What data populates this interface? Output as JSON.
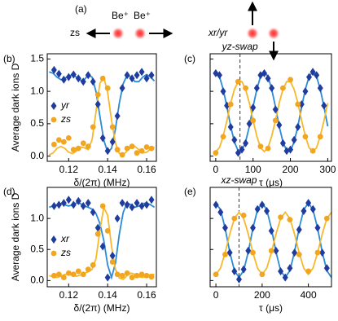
{
  "panel_a": {
    "label": "(a)",
    "left_text": "zs",
    "ion_labels": [
      "Be⁺",
      "Be⁺"
    ],
    "right_text": "xr/yr"
  },
  "chart_data": [
    {
      "type": "line",
      "panel_label": "(b)",
      "xlabel": "δ/(2π) (MHz)",
      "ylabel": "Average dark ions D",
      "xlim": [
        0.109,
        0.165
      ],
      "ylim": [
        -0.08,
        1.58
      ],
      "xticks": [
        0.12,
        0.14,
        0.16
      ],
      "yticks": [
        {
          "value": 0,
          "label": "0.0"
        },
        {
          "value": 0.5,
          "label": "0.5"
        },
        {
          "value": 1,
          "label": "1.0"
        },
        {
          "value": 1.5,
          "label": "1.5"
        }
      ],
      "ytick_labels": true,
      "legend": "left",
      "series": [
        {
          "name": "yr",
          "color": "#1f3c9e",
          "marker": "diamond",
          "x": [
            0.1125,
            0.115,
            0.1175,
            0.12,
            0.1225,
            0.125,
            0.1275,
            0.13,
            0.1325,
            0.135,
            0.1375,
            0.14,
            0.1425,
            0.145,
            0.1475,
            0.15,
            0.1525,
            0.155,
            0.1575,
            0.16,
            0.1625
          ],
          "values": [
            1.33,
            1.27,
            1.18,
            1.22,
            1.26,
            1.2,
            1.15,
            1.25,
            1.15,
            0.8,
            0.28,
            0.08,
            0.22,
            0.62,
            1.05,
            1.25,
            1.2,
            1.25,
            1.3,
            1.2,
            1.25
          ]
        },
        {
          "name": "zs",
          "color": "#f2a51f",
          "marker": "circle",
          "x": [
            0.1125,
            0.115,
            0.1175,
            0.12,
            0.1225,
            0.125,
            0.1275,
            0.13,
            0.1325,
            0.135,
            0.1375,
            0.14,
            0.1425,
            0.145,
            0.1475,
            0.15,
            0.1525,
            0.155,
            0.1575,
            0.16,
            0.1625
          ],
          "values": [
            0.18,
            0.25,
            0.22,
            0.28,
            0.1,
            0.12,
            0.2,
            0.15,
            0.45,
            0.95,
            1.2,
            1.05,
            0.45,
            0.1,
            0.02,
            0.12,
            0.15,
            0.05,
            0.08,
            0.14,
            0.12
          ]
        },
        {
          "color": "#2a8bd6",
          "marker": "none",
          "x": [
            0.11,
            0.112,
            0.114,
            0.116,
            0.118,
            0.12,
            0.122,
            0.124,
            0.126,
            0.128,
            0.13,
            0.132,
            0.134,
            0.136,
            0.138,
            0.14,
            0.142,
            0.144,
            0.146,
            0.148,
            0.15,
            0.152,
            0.154,
            0.156,
            0.158,
            0.16,
            0.162,
            0.164
          ],
          "values": [
            1.3,
            1.28,
            1.22,
            1.18,
            1.2,
            1.24,
            1.25,
            1.22,
            1.17,
            1.18,
            1.25,
            1.22,
            1.0,
            0.62,
            0.25,
            0.06,
            0.12,
            0.42,
            0.82,
            1.12,
            1.25,
            1.22,
            1.15,
            1.15,
            1.22,
            1.26,
            1.22,
            1.16
          ]
        },
        {
          "color": "#f7b82a",
          "marker": "none",
          "x": [
            0.11,
            0.112,
            0.114,
            0.116,
            0.118,
            0.12,
            0.122,
            0.124,
            0.126,
            0.128,
            0.13,
            0.132,
            0.134,
            0.136,
            0.138,
            0.14,
            0.142,
            0.144,
            0.146,
            0.148,
            0.15,
            0.152,
            0.154,
            0.156,
            0.158,
            0.16,
            0.162,
            0.164
          ],
          "values": [
            0.02,
            0.05,
            0.12,
            0.15,
            0.12,
            0.06,
            0.04,
            0.08,
            0.14,
            0.13,
            0.1,
            0.25,
            0.68,
            1.12,
            1.22,
            0.98,
            0.55,
            0.2,
            0.04,
            0.02,
            0.08,
            0.14,
            0.15,
            0.1,
            0.05,
            0.06,
            0.11,
            0.14
          ]
        }
      ]
    },
    {
      "type": "line",
      "panel_label": "(c)",
      "xlabel": "τ (μs)",
      "vline": 65,
      "vline_label": "yz-swap",
      "xlim": [
        -15,
        310
      ],
      "ylim": [
        -0.08,
        1.58
      ],
      "xticks": [
        0,
        100,
        200,
        300
      ],
      "yticks": [
        0,
        0.5,
        1,
        1.5
      ],
      "ytick_labels": false,
      "series": [
        {
          "color": "#1f3c9e",
          "marker": "diamond",
          "x": [
            0,
            10,
            20,
            30,
            40,
            50,
            60,
            70,
            80,
            90,
            100,
            110,
            120,
            130,
            140,
            150,
            160,
            170,
            180,
            190,
            200,
            210,
            220,
            230,
            240,
            250,
            260,
            270,
            280,
            290
          ],
          "values": [
            1.28,
            1.25,
            1.0,
            0.78,
            0.45,
            0.25,
            0.05,
            0.1,
            0.2,
            0.5,
            0.75,
            1.05,
            1.25,
            1.28,
            1.2,
            1.05,
            0.72,
            0.48,
            0.2,
            0.08,
            0.1,
            0.25,
            0.45,
            0.8,
            1.0,
            1.22,
            1.3,
            1.25,
            1.05,
            0.78
          ]
        },
        {
          "color": "#f2a51f",
          "marker": "circle",
          "x": [
            0,
            20,
            40,
            60,
            80,
            100,
            120,
            140,
            160,
            180,
            200,
            220,
            240,
            260,
            280
          ],
          "values": [
            0.05,
            0.3,
            0.8,
            1.15,
            1.05,
            0.55,
            0.15,
            0.12,
            0.55,
            1.05,
            1.18,
            0.8,
            0.3,
            0.08,
            0.3
          ]
        },
        {
          "color": "#2a8bd6",
          "marker": "none",
          "x": [
            0,
            10,
            20,
            30,
            40,
            50,
            60,
            70,
            80,
            90,
            100,
            110,
            120,
            130,
            140,
            150,
            160,
            170,
            180,
            190,
            200,
            210,
            220,
            230,
            240,
            250,
            260,
            270,
            280,
            290,
            300
          ],
          "values": [
            1.3,
            1.23,
            1.03,
            0.76,
            0.46,
            0.22,
            0.08,
            0.08,
            0.22,
            0.46,
            0.76,
            1.03,
            1.23,
            1.3,
            1.23,
            1.03,
            0.76,
            0.46,
            0.22,
            0.08,
            0.08,
            0.22,
            0.46,
            0.76,
            1.03,
            1.23,
            1.3,
            1.23,
            1.03,
            0.76,
            0.46
          ]
        },
        {
          "color": "#f7b82a",
          "marker": "none",
          "x": [
            0,
            10,
            20,
            30,
            40,
            50,
            60,
            70,
            80,
            90,
            100,
            110,
            120,
            130,
            140,
            150,
            160,
            170,
            180,
            190,
            200,
            210,
            220,
            230,
            240,
            250,
            260,
            270,
            280,
            290,
            300
          ],
          "values": [
            0.07,
            0.13,
            0.31,
            0.55,
            0.82,
            1.03,
            1.15,
            1.15,
            1.03,
            0.82,
            0.55,
            0.31,
            0.13,
            0.07,
            0.13,
            0.31,
            0.55,
            0.82,
            1.03,
            1.15,
            1.15,
            1.03,
            0.82,
            0.55,
            0.31,
            0.13,
            0.07,
            0.13,
            0.31,
            0.55,
            0.82
          ]
        }
      ]
    },
    {
      "type": "line",
      "panel_label": "(d)",
      "xlabel": "δ/(2π) (MHz)",
      "ylabel": "Average dark ions D",
      "xlim": [
        0.109,
        0.165
      ],
      "ylim": [
        -0.1,
        1.5
      ],
      "xticks": [
        0.12,
        0.14,
        0.16
      ],
      "yticks": [
        {
          "value": 0,
          "label": "0.0"
        },
        {
          "value": 0.5,
          "label": "0.5"
        },
        {
          "value": 1,
          "label": "1.0"
        }
      ],
      "ytick_labels": true,
      "legend": "left",
      "series": [
        {
          "name": "xr",
          "color": "#1f3c9e",
          "marker": "diamond",
          "x": [
            0.1125,
            0.115,
            0.1175,
            0.12,
            0.1225,
            0.125,
            0.1275,
            0.13,
            0.1325,
            0.135,
            0.1375,
            0.14,
            0.1425,
            0.145,
            0.1475,
            0.15,
            0.1525,
            0.155,
            0.1575,
            0.16,
            0.1625
          ],
          "values": [
            1.2,
            1.22,
            1.25,
            1.3,
            1.22,
            1.28,
            1.2,
            1.25,
            1.1,
            0.85,
            0.55,
            0.05,
            0.4,
            1.0,
            1.25,
            1.22,
            1.18,
            1.25,
            1.2,
            1.22,
            1.3
          ]
        },
        {
          "name": "zs",
          "color": "#f2a51f",
          "marker": "circle",
          "x": [
            0.1125,
            0.115,
            0.1175,
            0.12,
            0.1225,
            0.125,
            0.1275,
            0.13,
            0.1325,
            0.135,
            0.1375,
            0.14,
            0.1425,
            0.145,
            0.1475,
            0.15,
            0.1525,
            0.155,
            0.1575,
            0.16,
            0.1625
          ],
          "values": [
            0.08,
            0.1,
            0.05,
            0.12,
            0.1,
            0.15,
            0.1,
            0.18,
            0.25,
            0.75,
            1.2,
            0.8,
            0.3,
            0.1,
            0.08,
            0.12,
            0.05,
            0.08,
            0.1,
            0.08,
            0.06
          ]
        },
        {
          "color": "#2a8bd6",
          "marker": "none",
          "x": [
            0.11,
            0.112,
            0.114,
            0.116,
            0.118,
            0.12,
            0.122,
            0.124,
            0.126,
            0.128,
            0.13,
            0.132,
            0.134,
            0.136,
            0.138,
            0.14,
            0.142,
            0.144,
            0.146,
            0.148,
            0.15,
            0.152,
            0.154,
            0.156,
            0.158,
            0.16,
            0.162,
            0.164
          ],
          "values": [
            1.18,
            1.2,
            1.22,
            1.24,
            1.22,
            1.2,
            1.22,
            1.25,
            1.24,
            1.2,
            1.18,
            1.15,
            1.08,
            0.92,
            0.65,
            0.25,
            0.05,
            0.28,
            0.75,
            1.1,
            1.25,
            1.22,
            1.18,
            1.2,
            1.24,
            1.25,
            1.22,
            1.18
          ]
        },
        {
          "color": "#f7b82a",
          "marker": "none",
          "x": [
            0.11,
            0.112,
            0.114,
            0.116,
            0.118,
            0.12,
            0.122,
            0.124,
            0.126,
            0.128,
            0.13,
            0.132,
            0.134,
            0.136,
            0.138,
            0.14,
            0.142,
            0.144,
            0.146,
            0.148,
            0.15,
            0.152,
            0.154,
            0.156,
            0.158,
            0.16,
            0.162,
            0.164
          ],
          "values": [
            0.08,
            0.06,
            0.05,
            0.07,
            0.1,
            0.1,
            0.08,
            0.07,
            0.09,
            0.12,
            0.14,
            0.18,
            0.35,
            0.8,
            1.18,
            1.05,
            0.55,
            0.18,
            0.04,
            0.02,
            0.08,
            0.12,
            0.1,
            0.06,
            0.05,
            0.07,
            0.1,
            0.1
          ]
        }
      ]
    },
    {
      "type": "line",
      "panel_label": "(e)",
      "xlabel": "τ (μs)",
      "vline": 100,
      "vline_label": "xz-swap",
      "xlim": [
        -25,
        500
      ],
      "ylim": [
        -0.1,
        1.5
      ],
      "xticks": [
        0,
        200,
        400
      ],
      "yticks": [
        0,
        0.5,
        1
      ],
      "ytick_labels": false,
      "series": [
        {
          "color": "#1f3c9e",
          "marker": "diamond",
          "x": [
            0,
            20,
            40,
            60,
            80,
            100,
            120,
            140,
            160,
            180,
            200,
            220,
            240,
            260,
            280,
            300,
            320,
            340,
            360,
            380,
            400,
            420,
            440,
            460,
            480
          ],
          "values": [
            1.22,
            1.1,
            0.85,
            0.45,
            0.15,
            0.02,
            0.18,
            0.48,
            0.85,
            1.15,
            1.22,
            1.12,
            0.8,
            0.48,
            0.15,
            0.05,
            0.2,
            0.45,
            0.82,
            1.12,
            1.25,
            1.15,
            0.85,
            0.45,
            0.2
          ]
        },
        {
          "color": "#f2a51f",
          "marker": "circle",
          "x": [
            0,
            40,
            80,
            120,
            160,
            200,
            240,
            280,
            320,
            360,
            400,
            440,
            480
          ],
          "values": [
            0.1,
            0.42,
            1.0,
            1.05,
            0.45,
            0.1,
            0.48,
            1.02,
            0.98,
            0.42,
            0.15,
            0.45,
            1.0
          ]
        },
        {
          "color": "#2a8bd6",
          "marker": "none",
          "x": [
            0,
            20,
            40,
            60,
            80,
            100,
            120,
            140,
            160,
            180,
            200,
            220,
            240,
            260,
            280,
            300,
            320,
            340,
            360,
            380,
            400,
            420,
            440,
            460,
            480,
            500
          ],
          "values": [
            1.25,
            1.14,
            0.84,
            0.46,
            0.16,
            0.05,
            0.16,
            0.46,
            0.84,
            1.14,
            1.25,
            1.14,
            0.84,
            0.46,
            0.16,
            0.05,
            0.16,
            0.46,
            0.84,
            1.14,
            1.25,
            1.14,
            0.84,
            0.46,
            0.16,
            0.05
          ]
        },
        {
          "color": "#f7b82a",
          "marker": "none",
          "x": [
            0,
            20,
            40,
            60,
            80,
            100,
            120,
            140,
            160,
            180,
            200,
            220,
            240,
            260,
            280,
            300,
            320,
            340,
            360,
            380,
            400,
            420,
            440,
            460,
            480,
            500
          ],
          "values": [
            0.1,
            0.2,
            0.45,
            0.75,
            1.0,
            1.1,
            1.0,
            0.75,
            0.45,
            0.2,
            0.1,
            0.2,
            0.45,
            0.75,
            1.0,
            1.1,
            1.0,
            0.75,
            0.45,
            0.2,
            0.1,
            0.2,
            0.45,
            0.75,
            1.0,
            1.1
          ]
        }
      ]
    }
  ]
}
